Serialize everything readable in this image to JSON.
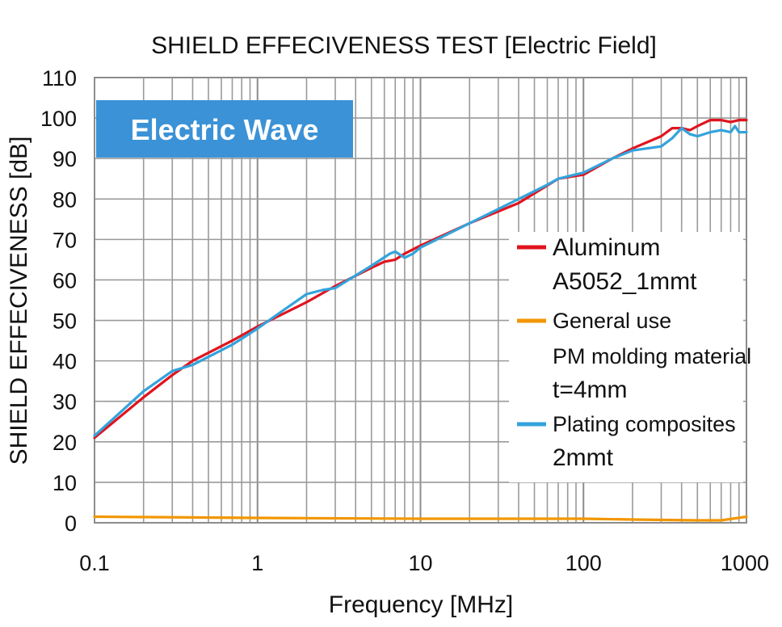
{
  "chart_data": {
    "type": "line",
    "title": "SHIELD EFFECIVENESS TEST [Electric Field]",
    "xlabel": "Frequency [MHz]",
    "ylabel": "SHIELD EFFECIVENESS [dB]",
    "x_scale": "log",
    "xlim": [
      0.1,
      1000
    ],
    "ylim": [
      0,
      110
    ],
    "x_ticks": [
      0.1,
      1,
      10,
      100,
      1000
    ],
    "x_tick_labels": [
      "0.1",
      "1",
      "10",
      "100",
      "1000"
    ],
    "y_ticks": [
      0,
      10,
      20,
      30,
      40,
      50,
      60,
      70,
      80,
      90,
      100,
      110
    ],
    "y_tick_labels": [
      "0",
      "10",
      "20",
      "30",
      "40",
      "50",
      "60",
      "70",
      "80",
      "90",
      "100",
      "110"
    ],
    "grid": true,
    "legend_position": "right",
    "badge": "Electric Wave",
    "series": [
      {
        "name": "Aluminum",
        "name_line2": "A5052_1mmt",
        "color": "#e0141e",
        "points": [
          [
            0.1,
            21
          ],
          [
            0.2,
            31
          ],
          [
            0.3,
            36.5
          ],
          [
            0.4,
            40
          ],
          [
            0.7,
            45
          ],
          [
            1,
            48.5
          ],
          [
            1.5,
            52
          ],
          [
            2,
            54.5
          ],
          [
            3,
            58.5
          ],
          [
            5,
            63
          ],
          [
            6,
            64.5
          ],
          [
            7,
            65
          ],
          [
            8,
            66.5
          ],
          [
            10,
            68.5
          ],
          [
            20,
            74
          ],
          [
            40,
            79
          ],
          [
            70,
            85
          ],
          [
            100,
            86
          ],
          [
            150,
            90
          ],
          [
            200,
            92.5
          ],
          [
            300,
            95.5
          ],
          [
            350,
            97.5
          ],
          [
            400,
            97.5
          ],
          [
            450,
            97
          ],
          [
            500,
            98
          ],
          [
            600,
            99.5
          ],
          [
            700,
            99.5
          ],
          [
            800,
            99
          ],
          [
            900,
            99.5
          ],
          [
            1000,
            99.5
          ]
        ]
      },
      {
        "name": "General use",
        "name_line2": "PM molding material",
        "name_line3": "t=4mm",
        "color": "#f29600",
        "points": [
          [
            0.1,
            1.5
          ],
          [
            1,
            1.2
          ],
          [
            10,
            1
          ],
          [
            100,
            1
          ],
          [
            200,
            0.8
          ],
          [
            500,
            0.6
          ],
          [
            700,
            0.6
          ],
          [
            1000,
            1.5
          ]
        ]
      },
      {
        "name": "Plating composites",
        "name_line2": "2mmt",
        "color": "#33a3dc",
        "points": [
          [
            0.1,
            21.5
          ],
          [
            0.2,
            32.5
          ],
          [
            0.3,
            37.5
          ],
          [
            0.4,
            39
          ],
          [
            0.7,
            44
          ],
          [
            1,
            48
          ],
          [
            1.5,
            53
          ],
          [
            2,
            56.5
          ],
          [
            2.5,
            57.5
          ],
          [
            3,
            58
          ],
          [
            5,
            63.5
          ],
          [
            6.5,
            66.5
          ],
          [
            7,
            67
          ],
          [
            8,
            65.5
          ],
          [
            9,
            66.5
          ],
          [
            10,
            68
          ],
          [
            20,
            74
          ],
          [
            40,
            80
          ],
          [
            60,
            83.5
          ],
          [
            70,
            85
          ],
          [
            100,
            86.5
          ],
          [
            150,
            90
          ],
          [
            200,
            92
          ],
          [
            300,
            93
          ],
          [
            350,
            95
          ],
          [
            400,
            97.5
          ],
          [
            450,
            96
          ],
          [
            500,
            95.5
          ],
          [
            600,
            96.5
          ],
          [
            700,
            97
          ],
          [
            800,
            96.5
          ],
          [
            850,
            98
          ],
          [
            900,
            96.5
          ],
          [
            1000,
            96.5
          ]
        ]
      }
    ]
  }
}
